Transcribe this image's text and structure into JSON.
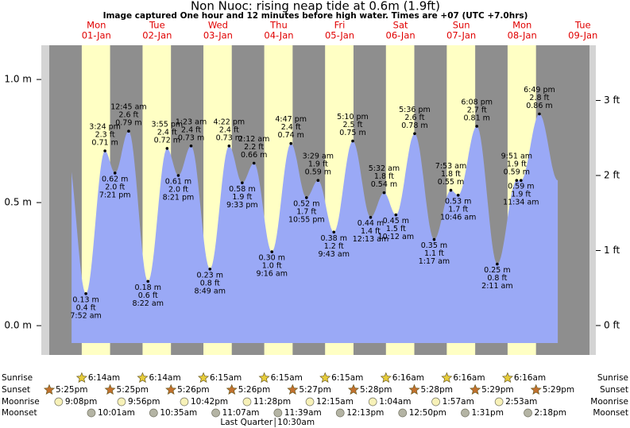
{
  "chart_data": {
    "type": "area",
    "title": "Non Nuoc: rising  neap tide at 0.6m (1.9ft)",
    "subtitle": "Image captured One hour and 12 minutes before high water. Times are +07 (UTC +7.0hrs)",
    "days": [
      "Mon",
      "Tue",
      "Wed",
      "Thu",
      "Fri",
      "Sat",
      "Sun",
      "Mon",
      "Tue"
    ],
    "categories": [
      "01-Jan",
      "02-Jan",
      "03-Jan",
      "04-Jan",
      "05-Jan",
      "06-Jan",
      "07-Jan",
      "08-Jan",
      "09-Jan"
    ],
    "dates": [
      "01-Jan",
      "01-Jan",
      "01-Jan",
      "02-Jan",
      "02-Jan",
      "02-Jan",
      "02-Jan",
      "03-Jan",
      "03-Jan",
      "03-Jan",
      "03-Jan",
      "04-Jan",
      "04-Jan",
      "04-Jan",
      "04-Jan",
      "05-Jan",
      "05-Jan",
      "05-Jan",
      "06-Jan",
      "06-Jan",
      "06-Jan",
      "06-Jan",
      "07-Jan",
      "07-Jan",
      "07-Jan",
      "07-Jan",
      "08-Jan",
      "08-Jan",
      "08-Jan",
      "08-Jan"
    ],
    "times": [
      "7:52 am",
      "3:24 pm",
      "7:21 pm",
      "12:45 am",
      "8:22 am",
      "3:55 pm",
      "8:21 pm",
      "1:23 am",
      "8:49 am",
      "4:22 pm",
      "9:33 pm",
      "2:12 am",
      "9:16 am",
      "4:47 pm",
      "10:55 pm",
      "3:29 am",
      "9:43 am",
      "5:10 pm",
      "12:13 am",
      "5:32 am",
      "10:12 am",
      "5:36 pm",
      "1:17 am",
      "7:53 am",
      "10:46 am",
      "6:08 pm",
      "2:11 am",
      "9:51 am",
      "11:34 am",
      "6:49 pm"
    ],
    "values": [
      0.13,
      0.71,
      0.62,
      0.79,
      0.18,
      0.72,
      0.61,
      0.73,
      0.23,
      0.73,
      0.58,
      0.66,
      0.3,
      0.74,
      0.52,
      0.59,
      0.38,
      0.75,
      0.44,
      0.54,
      0.45,
      0.78,
      0.35,
      0.55,
      0.53,
      0.81,
      0.25,
      0.59,
      0.59,
      0.86
    ],
    "value_labels": [
      "0.13 m",
      "0.71 m",
      "0.62 m",
      "0.79 m",
      "0.18 m",
      "0.72 m",
      "0.61 m",
      "0.73 m",
      "0.23 m",
      "0.73 m",
      "0.58 m",
      "0.66 m",
      "0.30 m",
      "0.74 m",
      "0.52 m",
      "0.59 m",
      "0.38 m",
      "0.75 m",
      "0.44 m",
      "0.54 m",
      "0.45 m",
      "0.78 m",
      "0.35 m",
      "0.55 m",
      "0.53 m",
      "0.81 m",
      "0.25 m",
      "0.59 m",
      "0.59 m",
      "0.86 m"
    ],
    "ft_values": [
      0.4,
      2.3,
      2.0,
      2.6,
      0.6,
      2.4,
      2.0,
      2.4,
      0.8,
      2.4,
      1.9,
      2.2,
      1.0,
      2.4,
      1.7,
      1.9,
      1.2,
      2.5,
      1.4,
      1.8,
      1.5,
      2.6,
      1.1,
      1.8,
      1.7,
      2.7,
      0.8,
      1.9,
      1.9,
      2.8
    ],
    "ft_labels": [
      "0.4 ft",
      "2.3 ft",
      "2.0 ft",
      "2.6 ft",
      "0.6 ft",
      "2.4 ft",
      "2.0 ft",
      "2.4 ft",
      "0.8 ft",
      "2.4 ft",
      "1.9 ft",
      "2.2 ft",
      "1.0 ft",
      "2.4 ft",
      "1.7 ft",
      "1.9 ft",
      "1.2 ft",
      "2.5 ft",
      "1.4 ft",
      "1.8 ft",
      "1.5 ft",
      "2.6 ft",
      "1.1 ft",
      "1.8 ft",
      "1.7 ft",
      "2.7 ft",
      "0.8 ft",
      "1.9 ft",
      "1.9 ft",
      "2.8 ft"
    ],
    "color": "#9aa9f6",
    "ylim": [
      -0.119,
      1.139
    ],
    "yticks": [
      {
        "value": 0,
        "label": "0.0 m"
      },
      {
        "value": 0.5,
        "label": "0.5 m"
      },
      {
        "value": 1,
        "label": "1.0 m"
      }
    ],
    "y2lim": [
      -0.392,
      3.736
    ],
    "y2ticks": [
      {
        "value": 0,
        "label": "0 ft"
      },
      {
        "value": 1,
        "label": "1 ft"
      },
      {
        "value": 2,
        "label": "2 ft"
      },
      {
        "value": 3,
        "label": "3 ft"
      }
    ],
    "events": [
      {
        "name": "Sunrise",
        "icon": "star",
        "color": "#e6cc3a",
        "dates": [
          "01-Jan",
          "02-Jan",
          "03-Jan",
          "04-Jan",
          "05-Jan",
          "06-Jan",
          "07-Jan",
          "08-Jan"
        ],
        "times": [
          "6:14am",
          "6:14am",
          "6:15am",
          "6:15am",
          "6:15am",
          "6:16am",
          "6:16am",
          "6:16am"
        ]
      },
      {
        "name": "Sunset",
        "icon": "star",
        "color": "#c2712e",
        "dates": [
          "31-Dec",
          "01-Jan",
          "02-Jan",
          "03-Jan",
          "04-Jan",
          "05-Jan",
          "06-Jan",
          "07-Jan",
          "08-Jan"
        ],
        "times": [
          "5:25pm",
          "5:25pm",
          "5:26pm",
          "5:26pm",
          "5:27pm",
          "5:28pm",
          "5:28pm",
          "5:29pm",
          "5:29pm"
        ]
      },
      {
        "name": "Moonrise",
        "icon": "circle",
        "color": "#f7f1b8",
        "dates": [
          "31-Dec",
          "01-Jan",
          "02-Jan",
          "03-Jan",
          "05-Jan",
          "06-Jan",
          "07-Jan",
          "08-Jan"
        ],
        "times": [
          "9:08pm",
          "9:56pm",
          "10:42pm",
          "11:28pm",
          "12:15am",
          "1:04am",
          "1:57am",
          "2:53am"
        ]
      },
      {
        "name": "Moonset",
        "icon": "circle",
        "color": "#b4b4a4",
        "dates": [
          "01-Jan",
          "02-Jan",
          "03-Jan",
          "04-Jan",
          "05-Jan",
          "06-Jan",
          "07-Jan",
          "08-Jan"
        ],
        "times": [
          "10:01am",
          "10:35am",
          "11:07am",
          "11:39am",
          "12:13pm",
          "12:50pm",
          "1:31pm",
          "2:18pm"
        ]
      }
    ],
    "moon_phase": {
      "name": "Last Quarter",
      "date": "04-Jan",
      "time": "10:30am"
    }
  }
}
